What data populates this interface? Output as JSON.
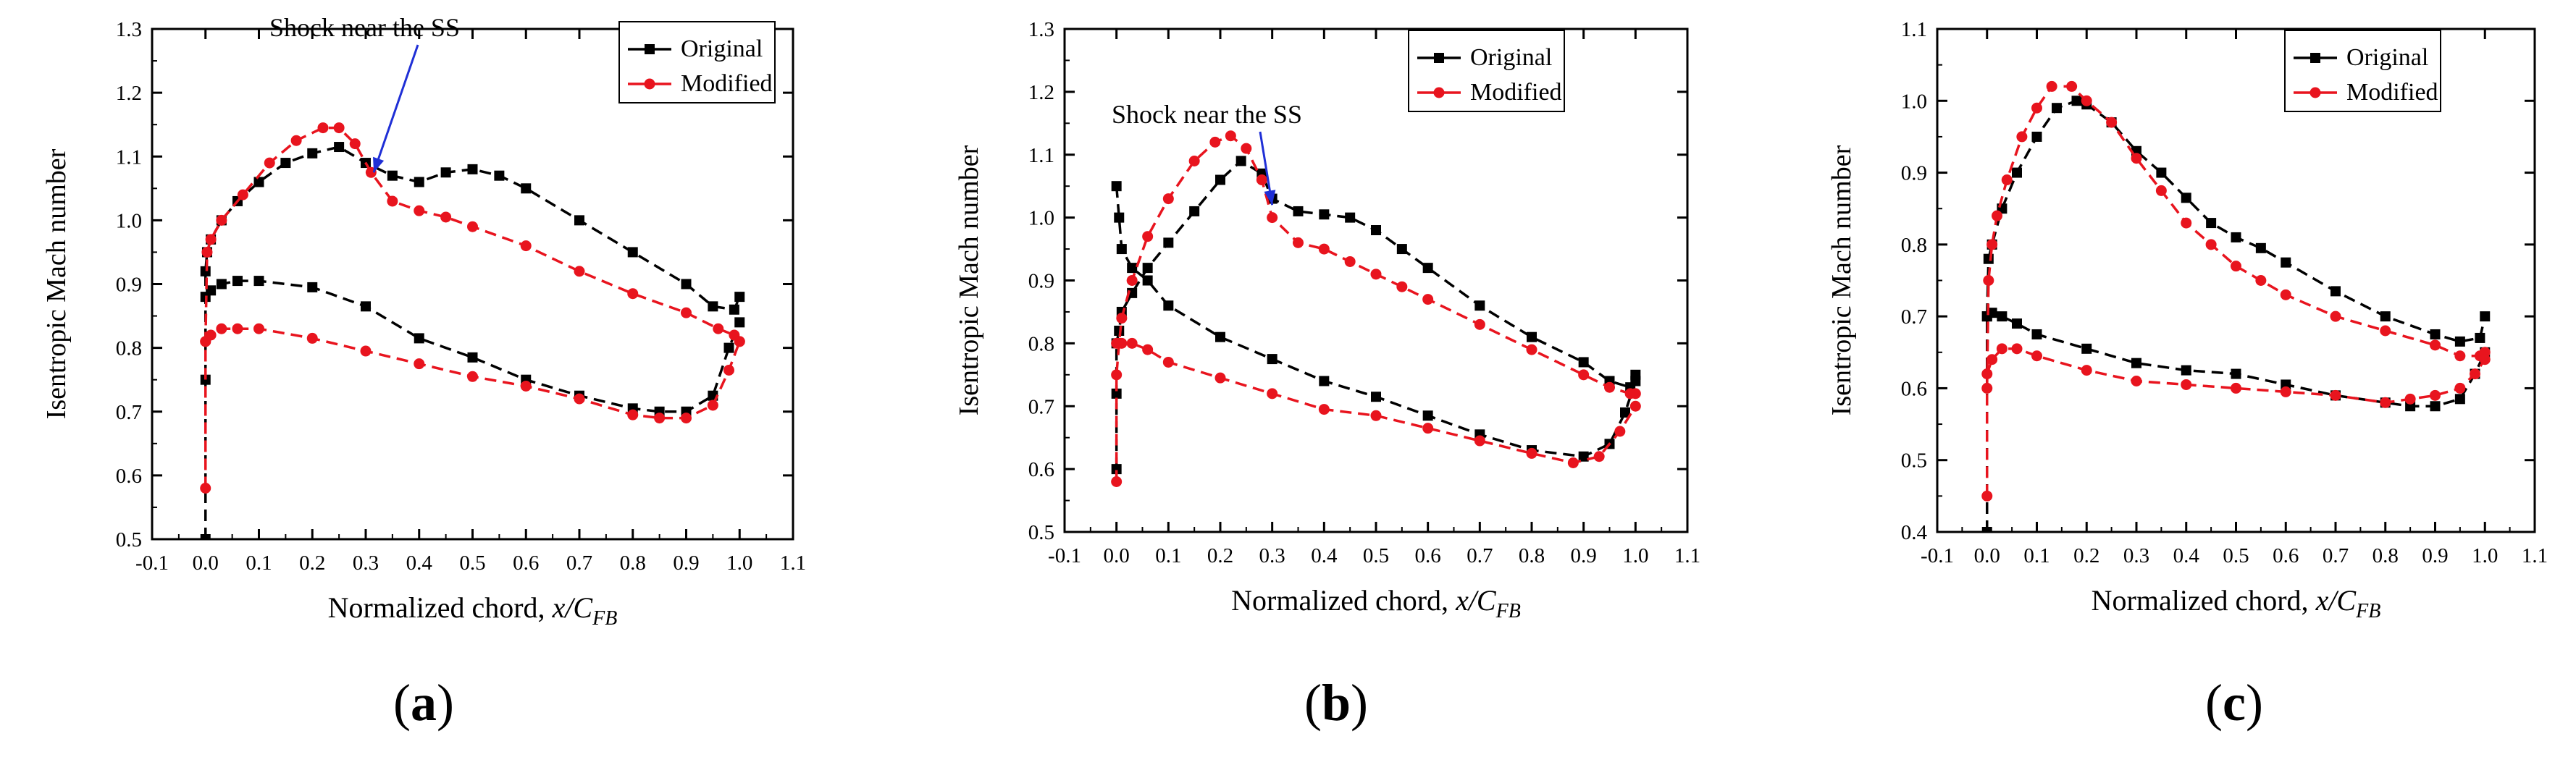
{
  "figure": {
    "panel_labels": [
      {
        "open": "(",
        "letter": "a",
        "close": ")"
      },
      {
        "open": "(",
        "letter": "b",
        "close": ")"
      },
      {
        "open": "(",
        "letter": "c",
        "close": ")"
      }
    ]
  },
  "chart_data": [
    {
      "type": "line",
      "panel": "a",
      "xlabel": "Normalized chord, ",
      "xlabel_italic": "x/C",
      "xlabel_sub": "FB",
      "ylabel": "Isentropic Mach number",
      "xlim": [
        -0.1,
        1.1
      ],
      "ylim": [
        0.5,
        1.3
      ],
      "xticks": [
        -0.1,
        0.0,
        0.1,
        0.2,
        0.3,
        0.4,
        0.5,
        0.6,
        0.7,
        0.8,
        0.9,
        1.0,
        1.1
      ],
      "yticks": [
        0.5,
        0.6,
        0.7,
        0.8,
        0.9,
        1.0,
        1.1,
        1.2,
        1.3
      ],
      "xtick_labels": [
        "-0.1",
        "0.0",
        "0.1",
        "0.2",
        "0.3",
        "0.4",
        "0.5",
        "0.6",
        "0.7",
        "0.8",
        "0.9",
        "1.0",
        "1.1"
      ],
      "ytick_labels": [
        "0.5",
        "0.6",
        "0.7",
        "0.8",
        "0.9",
        "1.0",
        "1.1",
        "1.2",
        "1.3"
      ],
      "legend": {
        "position": "top-right",
        "entries": [
          "Original",
          "Modified"
        ]
      },
      "annotation": {
        "text": "Shock near the SS",
        "target": [
          0.315,
          1.075
        ]
      },
      "series": [
        {
          "name": "Original",
          "color": "#000000",
          "marker": "square",
          "x": [
            0.0,
            0.0,
            0.0,
            0.003,
            0.01,
            0.03,
            0.06,
            0.1,
            0.15,
            0.2,
            0.25,
            0.3,
            0.35,
            0.4,
            0.45,
            0.5,
            0.55,
            0.6,
            0.7,
            0.8,
            0.9,
            0.95,
            0.99,
            1.0
          ],
          "y": [
            0.5,
            0.75,
            0.92,
            0.95,
            0.97,
            1.0,
            1.03,
            1.06,
            1.09,
            1.105,
            1.115,
            1.09,
            1.07,
            1.06,
            1.075,
            1.08,
            1.07,
            1.05,
            1.0,
            0.95,
            0.9,
            0.865,
            0.86,
            0.88
          ]
        },
        {
          "name": "Original",
          "color": "#000000",
          "marker": "square",
          "x": [
            0.0,
            0.01,
            0.03,
            0.06,
            0.1,
            0.2,
            0.3,
            0.4,
            0.5,
            0.6,
            0.7,
            0.8,
            0.85,
            0.9,
            0.95,
            0.98,
            1.0
          ],
          "y": [
            0.88,
            0.89,
            0.9,
            0.905,
            0.905,
            0.895,
            0.865,
            0.815,
            0.785,
            0.75,
            0.725,
            0.705,
            0.7,
            0.7,
            0.725,
            0.8,
            0.84
          ]
        },
        {
          "name": "Modified",
          "color": "#e8141e",
          "marker": "circle",
          "x": [
            0.0,
            0.0,
            0.003,
            0.01,
            0.03,
            0.07,
            0.12,
            0.17,
            0.22,
            0.25,
            0.28,
            0.31,
            0.35,
            0.4,
            0.45,
            0.5,
            0.6,
            0.7,
            0.8,
            0.9,
            0.96,
            0.99,
            1.0
          ],
          "y": [
            0.58,
            0.81,
            0.95,
            0.97,
            1.0,
            1.04,
            1.09,
            1.125,
            1.145,
            1.145,
            1.12,
            1.075,
            1.03,
            1.015,
            1.005,
            0.99,
            0.96,
            0.92,
            0.885,
            0.855,
            0.83,
            0.82,
            0.81
          ]
        },
        {
          "name": "Modified",
          "color": "#e8141e",
          "marker": "circle",
          "x": [
            0.0,
            0.01,
            0.03,
            0.06,
            0.1,
            0.2,
            0.3,
            0.4,
            0.5,
            0.6,
            0.7,
            0.8,
            0.85,
            0.9,
            0.95,
            0.98,
            1.0
          ],
          "y": [
            0.81,
            0.82,
            0.83,
            0.83,
            0.83,
            0.815,
            0.795,
            0.775,
            0.755,
            0.74,
            0.72,
            0.695,
            0.69,
            0.69,
            0.71,
            0.765,
            0.81
          ]
        }
      ]
    },
    {
      "type": "line",
      "panel": "b",
      "xlabel": "Normalized chord, ",
      "xlabel_italic": "x/C",
      "xlabel_sub": "FB",
      "ylabel": "Isentropic Mach number",
      "xlim": [
        -0.1,
        1.1
      ],
      "ylim": [
        0.5,
        1.3
      ],
      "xticks": [
        -0.1,
        0.0,
        0.1,
        0.2,
        0.3,
        0.4,
        0.5,
        0.6,
        0.7,
        0.8,
        0.9,
        1.0,
        1.1
      ],
      "yticks": [
        0.5,
        0.6,
        0.7,
        0.8,
        0.9,
        1.0,
        1.1,
        1.2,
        1.3
      ],
      "xtick_labels": [
        "-0.1",
        "0.0",
        "0.1",
        "0.2",
        "0.3",
        "0.4",
        "0.5",
        "0.6",
        "0.7",
        "0.8",
        "0.9",
        "1.0",
        "1.1"
      ],
      "ytick_labels": [
        "0.5",
        "0.6",
        "0.7",
        "0.8",
        "0.9",
        "1.0",
        "1.1",
        "1.2",
        "1.3"
      ],
      "legend": {
        "position": "top-right",
        "entries": [
          "Original",
          "Modified"
        ]
      },
      "annotation": {
        "text": "Shock near the SS",
        "target": [
          0.3,
          1.02
        ]
      },
      "series": [
        {
          "name": "Original",
          "color": "#000000",
          "marker": "square",
          "x": [
            0.0,
            0.0,
            0.0,
            0.005,
            0.01,
            0.03,
            0.06,
            0.1,
            0.15,
            0.2,
            0.24,
            0.28,
            0.3,
            0.35,
            0.4,
            0.45,
            0.5,
            0.55,
            0.6,
            0.7,
            0.8,
            0.9,
            0.95,
            0.99,
            1.0
          ],
          "y": [
            0.6,
            0.72,
            0.8,
            0.82,
            0.85,
            0.88,
            0.92,
            0.96,
            1.01,
            1.06,
            1.09,
            1.07,
            1.03,
            1.01,
            1.005,
            1.0,
            0.98,
            0.95,
            0.92,
            0.86,
            0.81,
            0.77,
            0.74,
            0.73,
            0.75
          ]
        },
        {
          "name": "Original",
          "color": "#000000",
          "marker": "square",
          "x": [
            0.0,
            0.005,
            0.01,
            0.03,
            0.06,
            0.1,
            0.2,
            0.3,
            0.4,
            0.5,
            0.6,
            0.7,
            0.8,
            0.9,
            0.95,
            0.98,
            1.0
          ],
          "y": [
            1.05,
            1.0,
            0.95,
            0.92,
            0.9,
            0.86,
            0.81,
            0.775,
            0.74,
            0.715,
            0.685,
            0.655,
            0.63,
            0.62,
            0.64,
            0.69,
            0.74
          ]
        },
        {
          "name": "Modified",
          "color": "#e8141e",
          "marker": "circle",
          "x": [
            0.0,
            0.0,
            0.005,
            0.01,
            0.03,
            0.06,
            0.1,
            0.15,
            0.19,
            0.22,
            0.25,
            0.28,
            0.3,
            0.35,
            0.4,
            0.45,
            0.5,
            0.55,
            0.6,
            0.7,
            0.8,
            0.9,
            0.95,
            0.99,
            1.0
          ],
          "y": [
            0.58,
            0.75,
            0.8,
            0.84,
            0.9,
            0.97,
            1.03,
            1.09,
            1.12,
            1.13,
            1.11,
            1.06,
            1.0,
            0.96,
            0.95,
            0.93,
            0.91,
            0.89,
            0.87,
            0.83,
            0.79,
            0.75,
            0.73,
            0.72,
            0.72
          ]
        },
        {
          "name": "Modified",
          "color": "#e8141e",
          "marker": "circle",
          "x": [
            0.0,
            0.01,
            0.03,
            0.06,
            0.1,
            0.2,
            0.3,
            0.4,
            0.5,
            0.6,
            0.7,
            0.8,
            0.88,
            0.93,
            0.97,
            1.0
          ],
          "y": [
            0.8,
            0.8,
            0.8,
            0.79,
            0.77,
            0.745,
            0.72,
            0.695,
            0.685,
            0.665,
            0.645,
            0.625,
            0.61,
            0.62,
            0.66,
            0.7
          ]
        }
      ]
    },
    {
      "type": "line",
      "panel": "c",
      "xlabel": "Normalized chord, ",
      "xlabel_italic": "x/C",
      "xlabel_sub": "FB",
      "ylabel": "Isentropic Mach number",
      "xlim": [
        -0.1,
        1.1
      ],
      "ylim": [
        0.4,
        1.1
      ],
      "xticks": [
        -0.1,
        0.0,
        0.1,
        0.2,
        0.3,
        0.4,
        0.5,
        0.6,
        0.7,
        0.8,
        0.9,
        1.0,
        1.1
      ],
      "yticks": [
        0.4,
        0.5,
        0.6,
        0.7,
        0.8,
        0.9,
        1.0,
        1.1
      ],
      "xtick_labels": [
        "-0.1",
        "0.0",
        "0.1",
        "0.2",
        "0.3",
        "0.4",
        "0.5",
        "0.6",
        "0.7",
        "0.8",
        "0.9",
        "1.0",
        "1.1"
      ],
      "ytick_labels": [
        "0.4",
        "0.5",
        "0.6",
        "0.7",
        "0.8",
        "0.9",
        "1.0",
        "1.1"
      ],
      "legend": {
        "position": "top-right",
        "entries": [
          "Original",
          "Modified"
        ]
      },
      "series": [
        {
          "name": "Original",
          "color": "#000000",
          "marker": "square",
          "x": [
            0.0,
            0.0,
            0.003,
            0.01,
            0.03,
            0.06,
            0.1,
            0.14,
            0.18,
            0.2,
            0.25,
            0.3,
            0.35,
            0.4,
            0.45,
            0.5,
            0.55,
            0.6,
            0.7,
            0.8,
            0.9,
            0.95,
            0.99,
            1.0
          ],
          "y": [
            0.4,
            0.7,
            0.78,
            0.8,
            0.85,
            0.9,
            0.95,
            0.99,
            1.0,
            0.995,
            0.97,
            0.93,
            0.9,
            0.865,
            0.83,
            0.81,
            0.795,
            0.775,
            0.735,
            0.7,
            0.675,
            0.665,
            0.67,
            0.7
          ]
        },
        {
          "name": "Original",
          "color": "#000000",
          "marker": "square",
          "x": [
            0.0,
            0.01,
            0.03,
            0.06,
            0.1,
            0.2,
            0.3,
            0.4,
            0.5,
            0.6,
            0.7,
            0.8,
            0.85,
            0.9,
            0.95,
            0.98,
            1.0
          ],
          "y": [
            0.7,
            0.705,
            0.7,
            0.69,
            0.675,
            0.655,
            0.635,
            0.625,
            0.62,
            0.605,
            0.59,
            0.58,
            0.575,
            0.575,
            0.585,
            0.62,
            0.65
          ]
        },
        {
          "name": "Modified",
          "color": "#e8141e",
          "marker": "circle",
          "x": [
            0.0,
            0.0,
            0.003,
            0.01,
            0.02,
            0.04,
            0.07,
            0.1,
            0.13,
            0.17,
            0.2,
            0.25,
            0.3,
            0.35,
            0.4,
            0.45,
            0.5,
            0.55,
            0.6,
            0.7,
            0.8,
            0.9,
            0.95,
            0.99,
            1.0
          ],
          "y": [
            0.45,
            0.6,
            0.75,
            0.8,
            0.84,
            0.89,
            0.95,
            0.99,
            1.02,
            1.02,
            1.0,
            0.97,
            0.92,
            0.875,
            0.83,
            0.8,
            0.77,
            0.75,
            0.73,
            0.7,
            0.68,
            0.66,
            0.645,
            0.645,
            0.65
          ]
        },
        {
          "name": "Modified",
          "color": "#e8141e",
          "marker": "circle",
          "x": [
            0.0,
            0.01,
            0.03,
            0.06,
            0.1,
            0.2,
            0.3,
            0.4,
            0.5,
            0.6,
            0.7,
            0.8,
            0.85,
            0.9,
            0.95,
            0.98,
            1.0
          ],
          "y": [
            0.62,
            0.64,
            0.655,
            0.655,
            0.645,
            0.625,
            0.61,
            0.605,
            0.6,
            0.595,
            0.59,
            0.58,
            0.585,
            0.59,
            0.6,
            0.62,
            0.64
          ]
        }
      ]
    }
  ]
}
